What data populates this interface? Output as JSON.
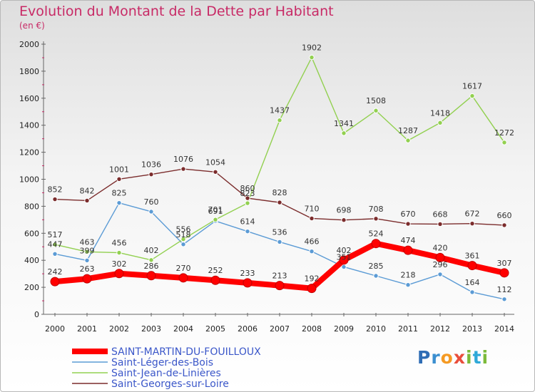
{
  "header": {
    "title": "Evolution du Montant de la Dette par Habitant",
    "unit": "(en €)"
  },
  "logo": {
    "text": "Proxiti"
  },
  "chart_data": {
    "type": "line",
    "title": "Evolution du Montant de la Dette par Habitant",
    "ylabel": "(en €)",
    "x": [
      "2000",
      "2001",
      "2002",
      "2003",
      "2004",
      "2005",
      "2006",
      "2007",
      "2008",
      "2009",
      "2010",
      "2011",
      "2012",
      "2013",
      "2014"
    ],
    "ylim": [
      0,
      2000
    ],
    "yticks": [
      0,
      200,
      400,
      600,
      800,
      1000,
      1200,
      1400,
      1600,
      1800,
      2000
    ],
    "grid": false,
    "legend": "bottom-left",
    "series": [
      {
        "name": "SAINT-MARTIN-DU-FOUILLOUX",
        "color": "#ff0000",
        "highlight": true,
        "values": [
          242,
          263,
          302,
          286,
          270,
          252,
          233,
          213,
          192,
          402,
          524,
          474,
          420,
          361,
          307
        ]
      },
      {
        "name": "Saint-Léger-des-Bois",
        "color": "#5b9bd5",
        "highlight": false,
        "values": [
          447,
          399,
          825,
          760,
          518,
          691,
          614,
          536,
          466,
          351,
          285,
          218,
          296,
          164,
          112
        ]
      },
      {
        "name": "Saint-Jean-de-Linières",
        "color": "#92d050",
        "highlight": false,
        "values": [
          517,
          463,
          456,
          402,
          556,
          701,
          823,
          1437,
          1902,
          1341,
          1508,
          1287,
          1418,
          1617,
          1272
        ]
      },
      {
        "name": "Saint-Georges-sur-Loire",
        "color": "#7b2c2c",
        "highlight": false,
        "values": [
          852,
          842,
          1001,
          1036,
          1076,
          1054,
          860,
          828,
          710,
          698,
          708,
          670,
          668,
          672,
          660
        ]
      }
    ]
  }
}
